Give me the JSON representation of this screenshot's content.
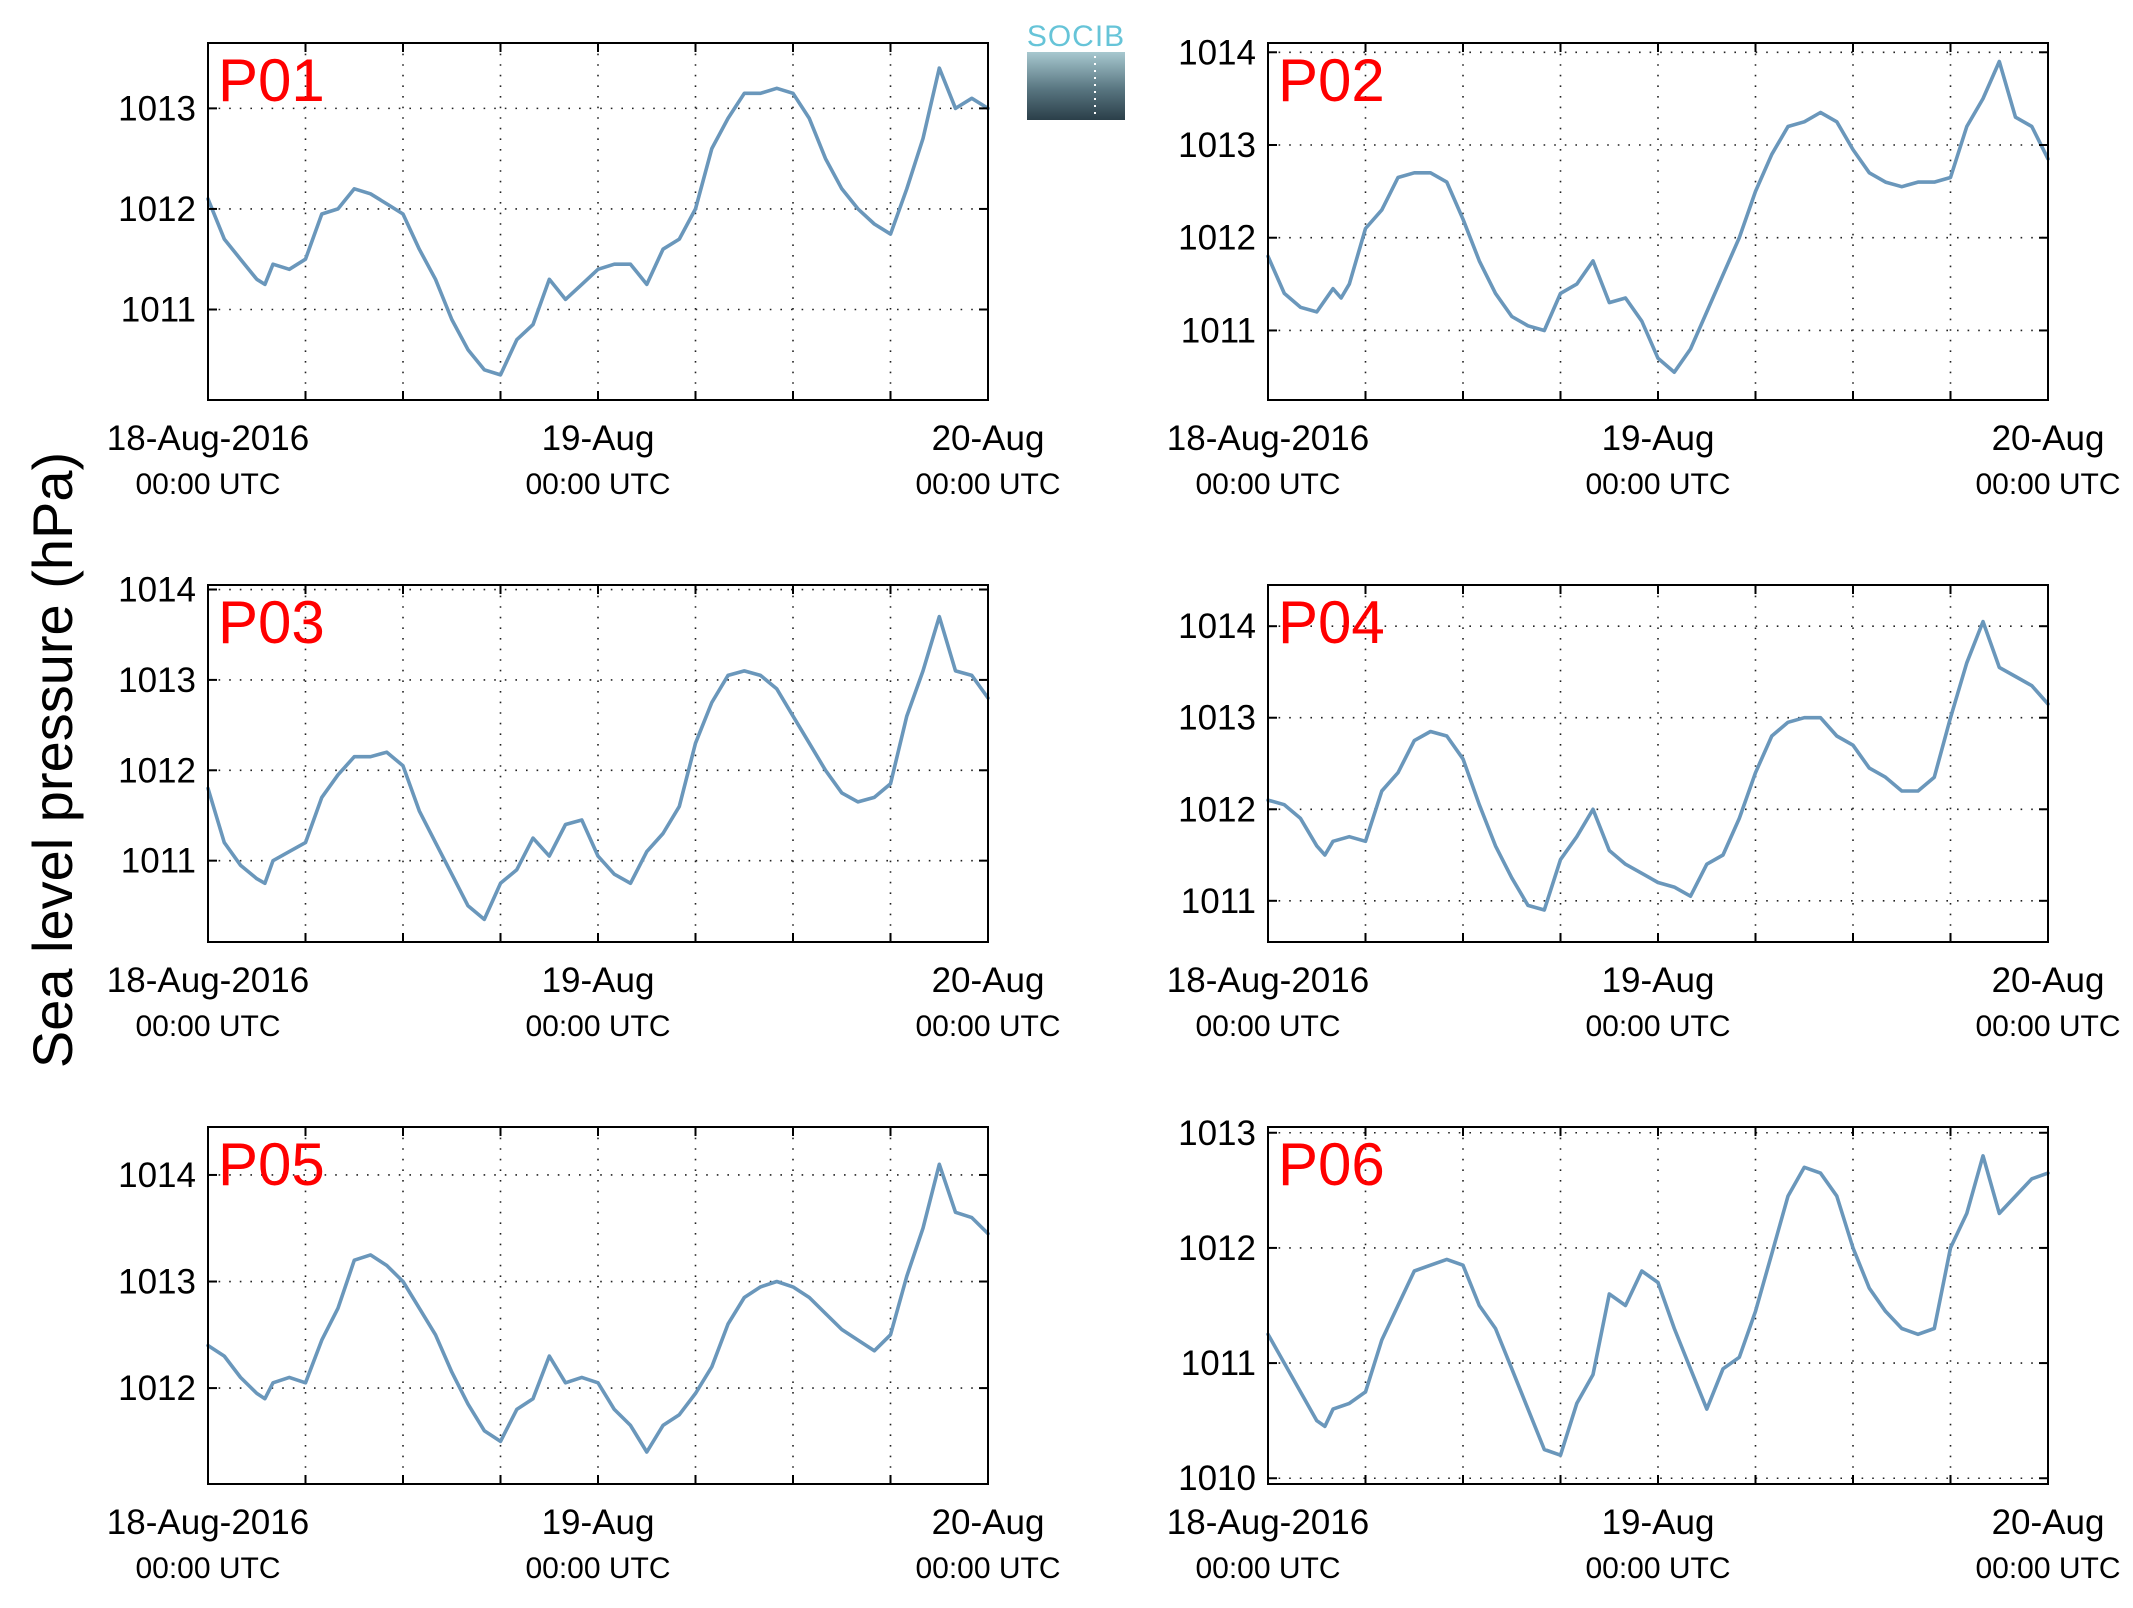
{
  "ylabel": "Sea level pressure (hPa)",
  "logo": {
    "text": "SOCIB"
  },
  "colors": {
    "series": "#6a97bb",
    "panel_tag": "#ff0000",
    "logo_text": "#66c4d8"
  },
  "x_ticks": [
    {
      "line1": "18-Aug-2016",
      "line2": "00:00 UTC",
      "hour": 0
    },
    {
      "line1": "19-Aug",
      "line2": "00:00 UTC",
      "hour": 24
    },
    {
      "line1": "20-Aug",
      "line2": "00:00 UTC",
      "hour": 48
    }
  ],
  "chart_data": [
    {
      "type": "line",
      "title": "P01",
      "ylabel": "Sea level pressure (hPa)",
      "xlim_hours": [
        0,
        48
      ],
      "ylim": [
        1010.1,
        1013.65
      ],
      "yticks": [
        1011,
        1012,
        1013
      ],
      "grid": true,
      "x": [
        0,
        1,
        2,
        3,
        3.5,
        4,
        5,
        6,
        7,
        8,
        9,
        10,
        11,
        12,
        13,
        14,
        15,
        16,
        17,
        18,
        19,
        20,
        21,
        22,
        23,
        24,
        25,
        26,
        27,
        28,
        29,
        30,
        31,
        32,
        33,
        34,
        35,
        36,
        37,
        38,
        39,
        40,
        41,
        42,
        43,
        44,
        45,
        46,
        47,
        48
      ],
      "y": [
        1012.1,
        1011.7,
        1011.5,
        1011.3,
        1011.25,
        1011.45,
        1011.4,
        1011.5,
        1011.95,
        1012.0,
        1012.2,
        1012.15,
        1012.05,
        1011.95,
        1011.6,
        1011.3,
        1010.9,
        1010.6,
        1010.4,
        1010.35,
        1010.7,
        1010.85,
        1011.3,
        1011.1,
        1011.25,
        1011.4,
        1011.45,
        1011.45,
        1011.25,
        1011.6,
        1011.7,
        1012.0,
        1012.6,
        1012.9,
        1013.15,
        1013.15,
        1013.2,
        1013.15,
        1012.9,
        1012.5,
        1012.2,
        1012.0,
        1011.85,
        1011.75,
        1012.2,
        1012.7,
        1013.4,
        1013.0,
        1013.1,
        1013.0
      ]
    },
    {
      "type": "line",
      "title": "P02",
      "ylabel": "Sea level pressure (hPa)",
      "xlim_hours": [
        0,
        48
      ],
      "ylim": [
        1010.25,
        1014.1
      ],
      "yticks": [
        1011,
        1012,
        1013,
        1014
      ],
      "grid": true,
      "x": [
        0,
        1,
        2,
        3,
        4,
        4.5,
        5,
        6,
        7,
        8,
        9,
        10,
        11,
        12,
        13,
        14,
        15,
        16,
        17,
        18,
        19,
        20,
        21,
        22,
        23,
        24,
        25,
        26,
        27,
        28,
        29,
        30,
        31,
        32,
        33,
        34,
        35,
        36,
        37,
        38,
        39,
        40,
        41,
        42,
        43,
        44,
        45,
        46,
        47,
        48
      ],
      "y": [
        1011.8,
        1011.4,
        1011.25,
        1011.2,
        1011.45,
        1011.35,
        1011.5,
        1012.1,
        1012.3,
        1012.65,
        1012.7,
        1012.7,
        1012.6,
        1012.2,
        1011.75,
        1011.4,
        1011.15,
        1011.05,
        1011.0,
        1011.4,
        1011.5,
        1011.75,
        1011.3,
        1011.35,
        1011.1,
        1010.7,
        1010.55,
        1010.8,
        1011.2,
        1011.6,
        1012.0,
        1012.5,
        1012.9,
        1013.2,
        1013.25,
        1013.35,
        1013.25,
        1012.95,
        1012.7,
        1012.6,
        1012.55,
        1012.6,
        1012.6,
        1012.65,
        1013.2,
        1013.5,
        1013.9,
        1013.3,
        1013.2,
        1012.85
      ]
    },
    {
      "type": "line",
      "title": "P03",
      "ylabel": "Sea level pressure (hPa)",
      "xlim_hours": [
        0,
        48
      ],
      "ylim": [
        1010.1,
        1014.05
      ],
      "yticks": [
        1011,
        1012,
        1013,
        1014
      ],
      "grid": true,
      "x": [
        0,
        1,
        2,
        3,
        3.5,
        4,
        5,
        6,
        7,
        8,
        9,
        10,
        11,
        12,
        13,
        14,
        15,
        16,
        17,
        18,
        19,
        20,
        21,
        22,
        23,
        24,
        25,
        26,
        27,
        28,
        29,
        30,
        31,
        32,
        33,
        34,
        35,
        36,
        37,
        38,
        39,
        40,
        41,
        42,
        43,
        44,
        45,
        46,
        47,
        48
      ],
      "y": [
        1011.8,
        1011.2,
        1010.95,
        1010.8,
        1010.75,
        1011.0,
        1011.1,
        1011.2,
        1011.7,
        1011.95,
        1012.15,
        1012.15,
        1012.2,
        1012.05,
        1011.55,
        1011.2,
        1010.85,
        1010.5,
        1010.35,
        1010.75,
        1010.9,
        1011.25,
        1011.05,
        1011.4,
        1011.45,
        1011.05,
        1010.85,
        1010.75,
        1011.1,
        1011.3,
        1011.6,
        1012.3,
        1012.75,
        1013.05,
        1013.1,
        1013.05,
        1012.9,
        1012.6,
        1012.3,
        1012.0,
        1011.75,
        1011.65,
        1011.7,
        1011.85,
        1012.6,
        1013.1,
        1013.7,
        1013.1,
        1013.05,
        1012.8
      ]
    },
    {
      "type": "line",
      "title": "P04",
      "ylabel": "Sea level pressure (hPa)",
      "xlim_hours": [
        0,
        48
      ],
      "ylim": [
        1010.55,
        1014.45
      ],
      "yticks": [
        1011,
        1012,
        1013,
        1014
      ],
      "grid": true,
      "x": [
        0,
        1,
        2,
        3,
        3.5,
        4,
        5,
        6,
        7,
        8,
        9,
        10,
        11,
        12,
        13,
        14,
        15,
        16,
        17,
        18,
        19,
        20,
        21,
        22,
        23,
        24,
        25,
        26,
        27,
        28,
        29,
        30,
        31,
        32,
        33,
        34,
        35,
        36,
        37,
        38,
        39,
        40,
        41,
        42,
        43,
        44,
        45,
        46,
        47,
        48
      ],
      "y": [
        1012.1,
        1012.05,
        1011.9,
        1011.6,
        1011.5,
        1011.65,
        1011.7,
        1011.65,
        1012.2,
        1012.4,
        1012.75,
        1012.85,
        1012.8,
        1012.55,
        1012.05,
        1011.6,
        1011.25,
        1010.95,
        1010.9,
        1011.45,
        1011.7,
        1012.0,
        1011.55,
        1011.4,
        1011.3,
        1011.2,
        1011.15,
        1011.05,
        1011.4,
        1011.5,
        1011.9,
        1012.4,
        1012.8,
        1012.95,
        1013.0,
        1013.0,
        1012.8,
        1012.7,
        1012.45,
        1012.35,
        1012.2,
        1012.2,
        1012.35,
        1013.0,
        1013.6,
        1014.05,
        1013.55,
        1013.45,
        1013.35,
        1013.15
      ]
    },
    {
      "type": "line",
      "title": "P05",
      "ylabel": "Sea level pressure (hPa)",
      "xlim_hours": [
        0,
        48
      ],
      "ylim": [
        1011.1,
        1014.45
      ],
      "yticks": [
        1012,
        1013,
        1014
      ],
      "grid": true,
      "x": [
        0,
        1,
        2,
        3,
        3.5,
        4,
        5,
        6,
        7,
        8,
        9,
        10,
        11,
        12,
        13,
        14,
        15,
        16,
        17,
        18,
        19,
        20,
        21,
        22,
        23,
        24,
        25,
        26,
        27,
        28,
        29,
        30,
        31,
        32,
        33,
        34,
        35,
        36,
        37,
        38,
        39,
        40,
        41,
        42,
        43,
        44,
        45,
        46,
        47,
        48
      ],
      "y": [
        1012.4,
        1012.3,
        1012.1,
        1011.95,
        1011.9,
        1012.05,
        1012.1,
        1012.05,
        1012.45,
        1012.75,
        1013.2,
        1013.25,
        1013.15,
        1013.0,
        1012.75,
        1012.5,
        1012.15,
        1011.85,
        1011.6,
        1011.5,
        1011.8,
        1011.9,
        1012.3,
        1012.05,
        1012.1,
        1012.05,
        1011.8,
        1011.65,
        1011.4,
        1011.65,
        1011.75,
        1011.95,
        1012.2,
        1012.6,
        1012.85,
        1012.95,
        1013.0,
        1012.95,
        1012.85,
        1012.7,
        1012.55,
        1012.45,
        1012.35,
        1012.5,
        1013.05,
        1013.5,
        1014.1,
        1013.65,
        1013.6,
        1013.45
      ]
    },
    {
      "type": "line",
      "title": "P06",
      "ylabel": "Sea level pressure (hPa)",
      "xlim_hours": [
        0,
        48
      ],
      "ylim": [
        1009.95,
        1013.05
      ],
      "yticks": [
        1010,
        1011,
        1012,
        1013
      ],
      "grid": true,
      "x": [
        0,
        1,
        2,
        3,
        3.5,
        4,
        5,
        6,
        7,
        8,
        9,
        10,
        11,
        12,
        13,
        14,
        15,
        16,
        17,
        18,
        19,
        20,
        21,
        22,
        23,
        24,
        25,
        26,
        27,
        28,
        29,
        30,
        31,
        32,
        33,
        34,
        35,
        36,
        37,
        38,
        39,
        40,
        41,
        42,
        43,
        44,
        45,
        46,
        47,
        48
      ],
      "y": [
        1011.25,
        1011.0,
        1010.75,
        1010.5,
        1010.45,
        1010.6,
        1010.65,
        1010.75,
        1011.2,
        1011.5,
        1011.8,
        1011.85,
        1011.9,
        1011.85,
        1011.5,
        1011.3,
        1010.95,
        1010.6,
        1010.25,
        1010.2,
        1010.65,
        1010.9,
        1011.6,
        1011.5,
        1011.8,
        1011.7,
        1011.3,
        1010.95,
        1010.6,
        1010.95,
        1011.05,
        1011.45,
        1011.95,
        1012.45,
        1012.7,
        1012.65,
        1012.45,
        1012.0,
        1011.65,
        1011.45,
        1011.3,
        1011.25,
        1011.3,
        1012.0,
        1012.3,
        1012.8,
        1012.3,
        1012.45,
        1012.6,
        1012.65
      ]
    }
  ]
}
